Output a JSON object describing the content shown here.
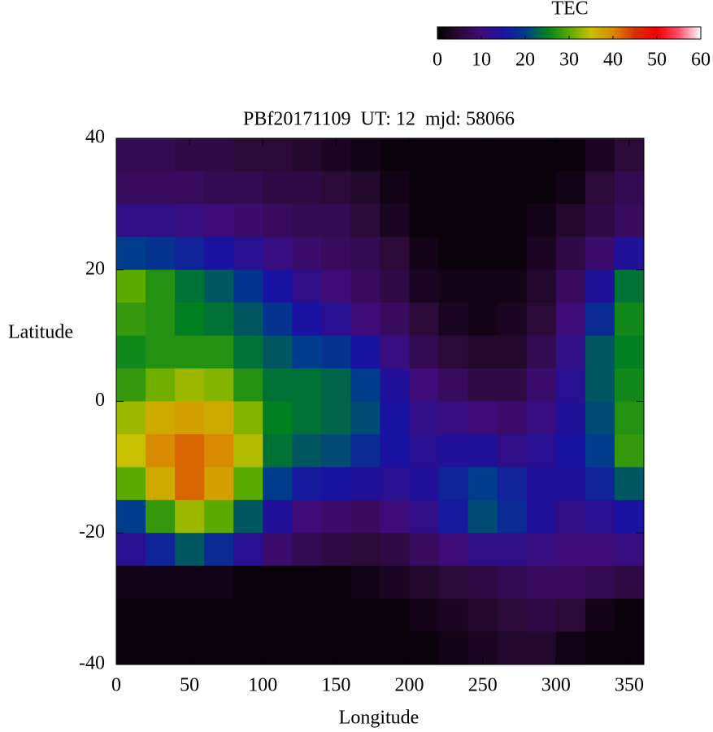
{
  "chart_data": {
    "type": "heatmap",
    "title": "PBf20171109  UT: 12  mjd: 58066",
    "x_label": "Longitude",
    "y_label": "Latitude",
    "colorbar_label": "TEC",
    "x": [
      10,
      30,
      50,
      70,
      90,
      110,
      130,
      150,
      170,
      190,
      210,
      230,
      250,
      270,
      290,
      310,
      330,
      350
    ],
    "y": [
      37.5,
      32.5,
      27.5,
      22.5,
      17.5,
      12.5,
      7.5,
      2.5,
      -2.5,
      -7.5,
      -12.5,
      -17.5,
      -22.5,
      -27.5,
      -32.5,
      -37.5
    ],
    "values": [
      [
        7,
        7,
        6,
        6,
        5,
        5,
        4,
        3,
        2,
        1,
        1,
        1,
        1,
        1,
        1,
        1,
        3,
        5
      ],
      [
        8,
        8,
        8,
        7,
        7,
        6,
        6,
        5,
        4,
        2,
        1,
        1,
        1,
        1,
        1,
        2,
        5,
        7
      ],
      [
        12,
        12,
        11,
        10,
        9,
        8,
        7,
        7,
        5,
        3,
        1,
        1,
        1,
        1,
        2,
        4,
        6,
        8
      ],
      [
        20,
        19,
        17,
        15,
        13,
        11,
        9,
        8,
        7,
        5,
        2,
        1,
        1,
        1,
        3,
        6,
        9,
        14
      ],
      [
        30,
        27,
        24,
        22,
        19,
        15,
        12,
        10,
        8,
        6,
        3,
        2,
        2,
        2,
        4,
        8,
        14,
        24
      ],
      [
        28,
        27,
        25,
        24,
        22,
        19,
        15,
        13,
        10,
        8,
        5,
        3,
        2,
        3,
        5,
        10,
        18,
        26
      ],
      [
        26,
        27,
        27,
        27,
        24,
        22,
        20,
        19,
        15,
        11,
        7,
        5,
        4,
        4,
        7,
        12,
        22,
        25
      ],
      [
        28,
        31,
        33,
        32,
        27,
        24,
        24,
        23,
        20,
        14,
        10,
        8,
        6,
        6,
        9,
        13,
        22,
        26
      ],
      [
        33,
        37,
        38,
        37,
        32,
        25,
        24,
        23,
        21,
        15,
        12,
        11,
        10,
        9,
        11,
        14,
        21,
        27
      ],
      [
        35,
        40,
        42,
        40,
        34,
        24,
        22,
        21,
        18,
        15,
        13,
        14,
        14,
        12,
        13,
        15,
        20,
        28
      ],
      [
        30,
        37,
        42,
        38,
        30,
        20,
        16,
        15,
        14,
        13,
        14,
        17,
        20,
        17,
        14,
        14,
        17,
        22
      ],
      [
        20,
        28,
        33,
        30,
        22,
        14,
        10,
        9,
        8,
        10,
        12,
        16,
        21,
        18,
        14,
        12,
        13,
        15
      ],
      [
        13,
        17,
        22,
        18,
        13,
        9,
        7,
        6,
        5,
        6,
        8,
        10,
        12,
        12,
        11,
        10,
        10,
        11
      ],
      [
        2,
        2,
        2,
        2,
        1,
        1,
        1,
        1,
        2,
        3,
        4,
        5,
        6,
        7,
        8,
        8,
        7,
        6
      ],
      [
        1,
        1,
        1,
        1,
        1,
        1,
        1,
        1,
        1,
        1,
        2,
        3,
        4,
        5,
        6,
        5,
        2,
        1
      ],
      [
        1,
        1,
        1,
        1,
        1,
        1,
        1,
        1,
        1,
        1,
        1,
        2,
        3,
        4,
        4,
        2,
        1,
        1
      ]
    ],
    "xlim": [
      0,
      360
    ],
    "ylim": [
      -40,
      40
    ],
    "xticks": [
      0,
      50,
      100,
      150,
      200,
      250,
      300,
      350
    ],
    "yticks": [
      -40,
      -20,
      0,
      20,
      40
    ],
    "clim": [
      0,
      60
    ],
    "cticks": [
      0,
      10,
      20,
      30,
      40,
      50,
      60
    ],
    "colormap": [
      "#000000",
      "#2c0a38",
      "#3e0c78",
      "#1a12a0",
      "#003c8c",
      "#008020",
      "#5aaa00",
      "#c8c000",
      "#d88a00",
      "#d83000",
      "#f00000",
      "#ff5070",
      "#ffffff"
    ]
  }
}
